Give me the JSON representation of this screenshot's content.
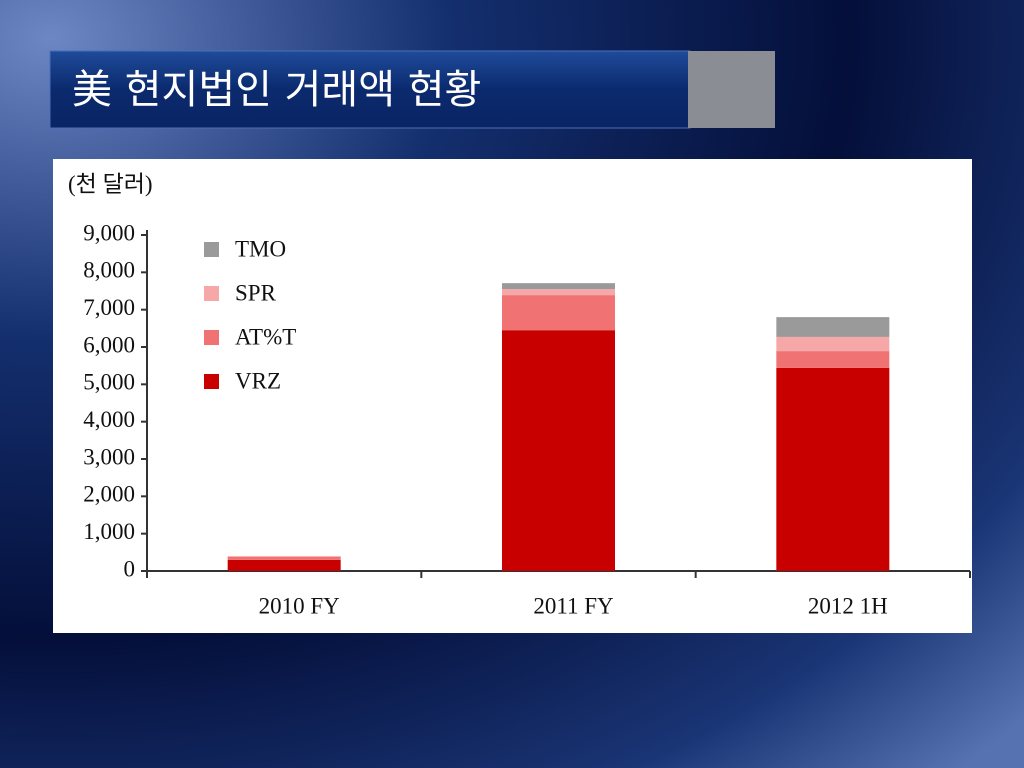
{
  "chart_data": {
    "type": "stacked_bar",
    "title": "美 현지법인 거래액 현황",
    "y_label": "(천 달러)",
    "categories": [
      "2010 FY",
      "2011 FY",
      "2012 1H"
    ],
    "series": [
      {
        "name": "VRZ",
        "color": "#c80000",
        "values": [
          300,
          6450,
          5440
        ]
      },
      {
        "name": "AT%T",
        "color": "#f07272",
        "values": [
          80,
          940,
          450
        ]
      },
      {
        "name": "SPR",
        "color": "#f6a8a8",
        "values": [
          20,
          160,
          380
        ]
      },
      {
        "name": "TMO",
        "color": "#9a9a9a",
        "values": [
          0,
          160,
          530
        ]
      }
    ],
    "ylim": [
      0,
      9000
    ],
    "yticks": [
      0,
      {
        "value": 1000,
        "label": "1,000"
      },
      {
        "value": 2000,
        "label": "2,000"
      },
      {
        "value": 3000,
        "label": "3,000"
      },
      {
        "value": 4000,
        "label": "4,000"
      },
      {
        "value": 5000,
        "label": "5,000"
      },
      {
        "value": 6000,
        "label": "6,000"
      },
      {
        "value": 7000,
        "label": "7,000"
      },
      {
        "value": 8000,
        "label": "8,000"
      },
      {
        "value": 9000,
        "label": "9,000"
      }
    ],
    "legend": "upper-left"
  }
}
